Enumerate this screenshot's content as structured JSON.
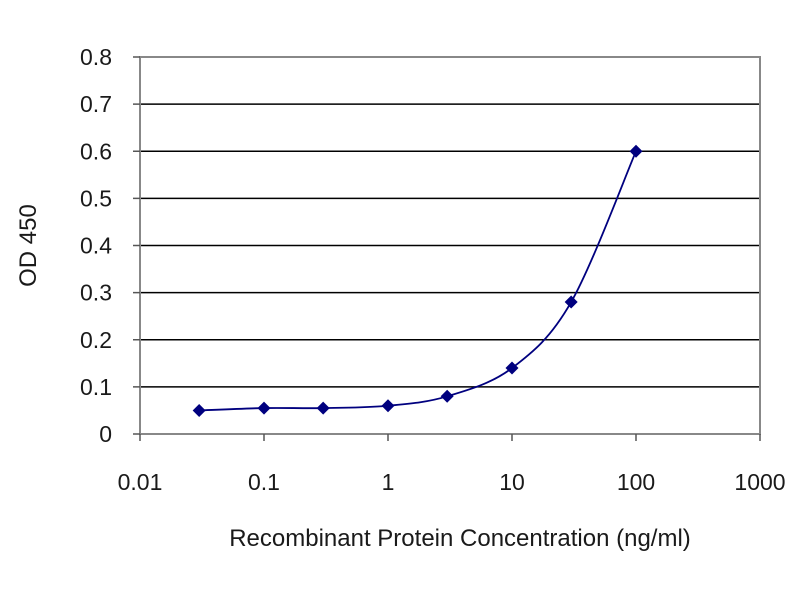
{
  "chart_data": {
    "type": "scatter",
    "title": "",
    "xlabel": "Recombinant Protein Concentration (ng/ml)",
    "ylabel": "OD 450",
    "x_scale": "log",
    "xlim": [
      0.01,
      1000
    ],
    "ylim": [
      0,
      0.8
    ],
    "x_ticks": [
      {
        "value": 0.01,
        "label": "0.01"
      },
      {
        "value": 0.1,
        "label": "0.1"
      },
      {
        "value": 1,
        "label": "1"
      },
      {
        "value": 10,
        "label": "10"
      },
      {
        "value": 100,
        "label": "100"
      },
      {
        "value": 1000,
        "label": "1000"
      }
    ],
    "y_ticks": [
      {
        "value": 0,
        "label": "0"
      },
      {
        "value": 0.1,
        "label": "0.1"
      },
      {
        "value": 0.2,
        "label": "0.2"
      },
      {
        "value": 0.3,
        "label": "0.3"
      },
      {
        "value": 0.4,
        "label": "0.4"
      },
      {
        "value": 0.5,
        "label": "0.5"
      },
      {
        "value": 0.6,
        "label": "0.6"
      },
      {
        "value": 0.7,
        "label": "0.7"
      },
      {
        "value": 0.8,
        "label": "0.8"
      }
    ],
    "grid": "horizontal",
    "series": [
      {
        "x": [
          0.03,
          0.1,
          0.3,
          1,
          3,
          10,
          30,
          100
        ],
        "y": [
          0.05,
          0.055,
          0.055,
          0.06,
          0.08,
          0.14,
          0.28,
          0.6
        ],
        "color": "#00007f",
        "fit_curve": true
      }
    ]
  }
}
